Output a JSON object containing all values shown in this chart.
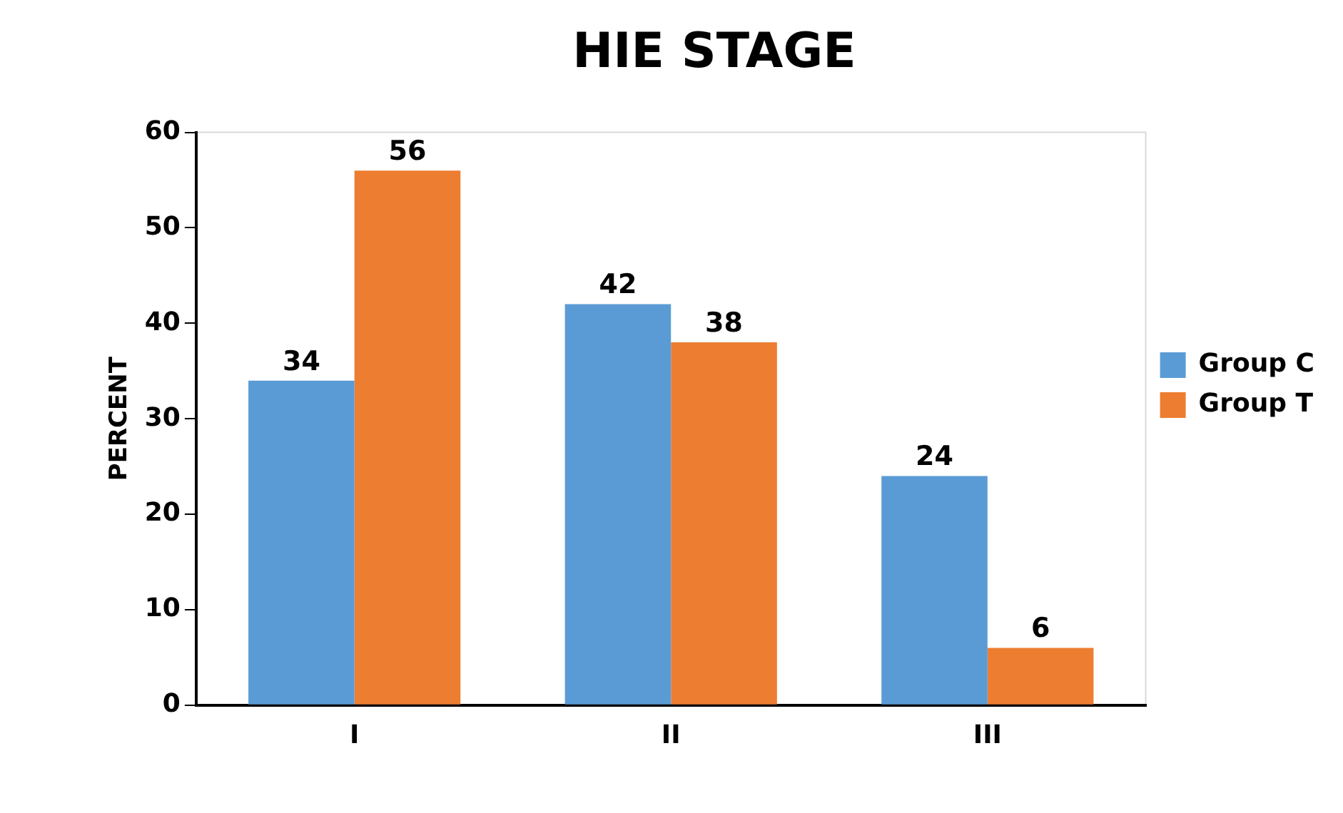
{
  "chart_data": {
    "type": "bar",
    "title": "HIE STAGE",
    "ylabel": "PERCENT",
    "categories": [
      "I",
      "II",
      "III"
    ],
    "series": [
      {
        "name": "Group C",
        "color": "#5b9bd5",
        "values": [
          34,
          42,
          24
        ]
      },
      {
        "name": "Group T",
        "color": "#ed7d31",
        "values": [
          56,
          38,
          6
        ]
      }
    ],
    "ylim": [
      0,
      60
    ],
    "yticks": [
      0,
      10,
      20,
      30,
      40,
      50,
      60
    ],
    "grid": false,
    "legend": "right",
    "data_labels": true
  }
}
